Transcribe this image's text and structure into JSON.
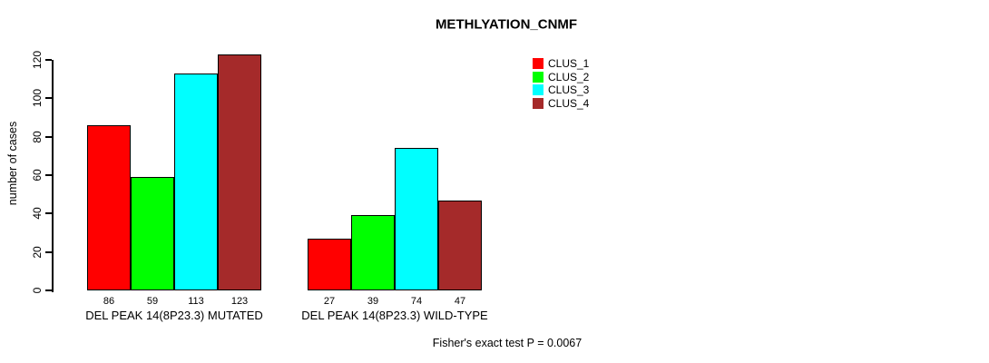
{
  "chart_data": {
    "type": "bar",
    "title": "METHLYATION_CNMF",
    "xlabel": "",
    "ylabel": "number of cases",
    "ylim": [
      0,
      123
    ],
    "yticks": [
      0,
      20,
      40,
      60,
      80,
      100,
      120
    ],
    "grid": false,
    "legend_position": "top-right",
    "categories": [
      "DEL PEAK 14(8P23.3) MUTATED",
      "DEL PEAK 14(8P23.3) WILD-TYPE"
    ],
    "series": [
      {
        "name": "CLUS_1",
        "color": "#ff0000",
        "values": [
          86,
          27
        ]
      },
      {
        "name": "CLUS_2",
        "color": "#00ff00",
        "values": [
          59,
          39
        ]
      },
      {
        "name": "CLUS_3",
        "color": "#00ffff",
        "values": [
          113,
          74
        ]
      },
      {
        "name": "CLUS_4",
        "color": "#a52a2a",
        "values": [
          123,
          47
        ]
      }
    ],
    "annotation": "Fisher's exact test P = 0.0067"
  }
}
